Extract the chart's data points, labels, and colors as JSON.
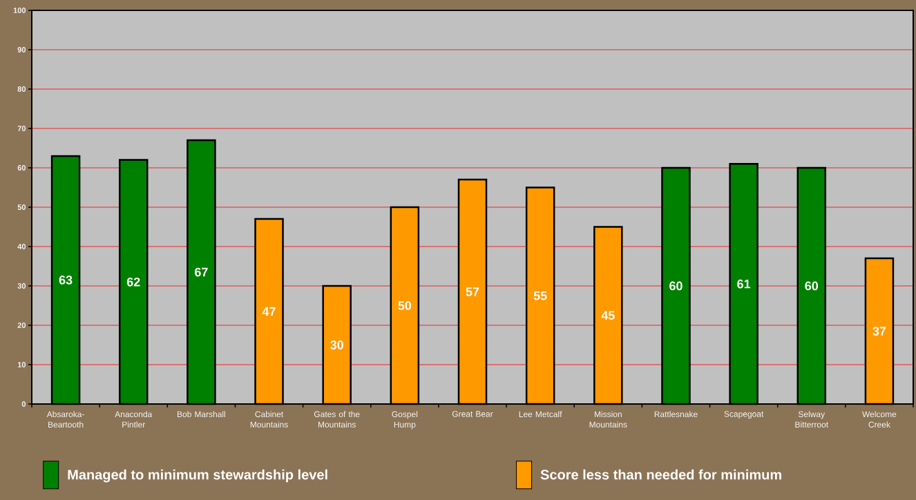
{
  "chart_data": {
    "type": "bar",
    "categories": [
      "Absaroka-Beartooth",
      "Anaconda Pintler",
      "Bob Marshall",
      "Cabinet Mountains",
      "Gates of the Mountains",
      "Gospel Hump",
      "Great Bear",
      "Lee Metcalf",
      "Mission Mountains",
      "Rattlesnake",
      "Scapegoat",
      "Selway Bitterroot",
      "Welcome Creek"
    ],
    "series": [
      {
        "name": "Managed to minimum stewardship level",
        "color": "#008000",
        "values": [
          63,
          62,
          67,
          null,
          null,
          null,
          null,
          null,
          null,
          60,
          61,
          60,
          null
        ]
      },
      {
        "name": "Score less than needed for minimum",
        "color": "#ff9900",
        "values": [
          null,
          null,
          null,
          47,
          30,
          50,
          57,
          55,
          45,
          null,
          null,
          null,
          37
        ]
      }
    ],
    "ylim": [
      0,
      100
    ],
    "yticks": [
      0,
      10,
      20,
      30,
      40,
      50,
      60,
      70,
      80,
      90,
      100
    ],
    "grid": "y",
    "legend": "bottom",
    "data_labels": true
  }
}
